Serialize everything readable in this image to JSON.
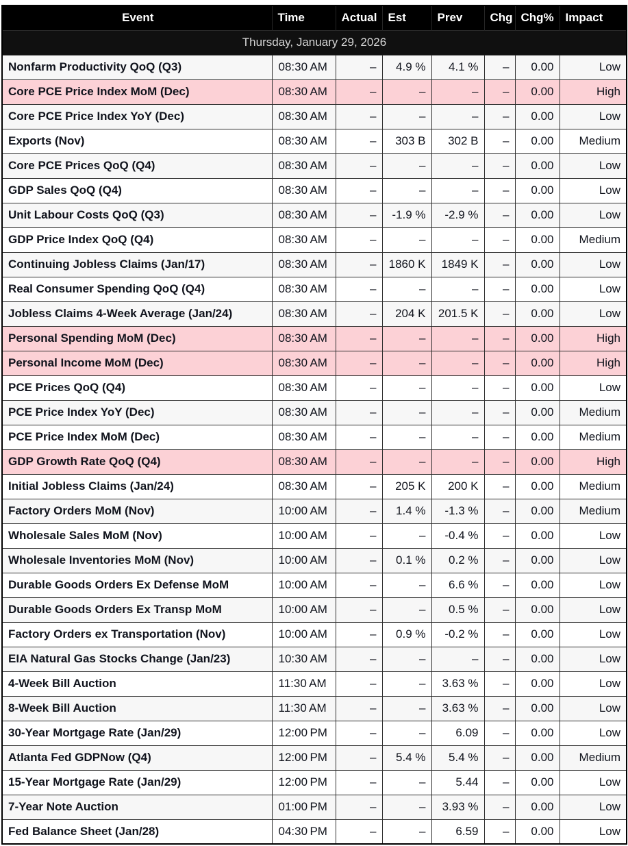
{
  "table": {
    "date_header": "Thursday, January 29, 2026",
    "columns": [
      {
        "key": "event",
        "label": "Event"
      },
      {
        "key": "time",
        "label": "Time"
      },
      {
        "key": "actual",
        "label": "Actual"
      },
      {
        "key": "est",
        "label": "Est"
      },
      {
        "key": "prev",
        "label": "Prev"
      },
      {
        "key": "chg",
        "label": "Chg"
      },
      {
        "key": "chg_pct",
        "label": "Chg%"
      },
      {
        "key": "impact",
        "label": "Impact"
      }
    ],
    "rows": [
      {
        "event": "Nonfarm Productivity QoQ (Q3)",
        "time": "08:30 AM",
        "actual": "–",
        "est": "4.9 %",
        "prev": "4.1 %",
        "chg": "–",
        "chg_pct": "0.00",
        "impact": "Low"
      },
      {
        "event": "Core PCE Price Index MoM (Dec)",
        "time": "08:30 AM",
        "actual": "–",
        "est": "–",
        "prev": "–",
        "chg": "–",
        "chg_pct": "0.00",
        "impact": "High"
      },
      {
        "event": "Core PCE Price Index YoY (Dec)",
        "time": "08:30 AM",
        "actual": "–",
        "est": "–",
        "prev": "–",
        "chg": "–",
        "chg_pct": "0.00",
        "impact": "Low"
      },
      {
        "event": "Exports (Nov)",
        "time": "08:30 AM",
        "actual": "–",
        "est": "303 B",
        "prev": "302 B",
        "chg": "–",
        "chg_pct": "0.00",
        "impact": "Medium"
      },
      {
        "event": "Core PCE Prices QoQ (Q4)",
        "time": "08:30 AM",
        "actual": "–",
        "est": "–",
        "prev": "–",
        "chg": "–",
        "chg_pct": "0.00",
        "impact": "Low"
      },
      {
        "event": "GDP Sales QoQ (Q4)",
        "time": "08:30 AM",
        "actual": "–",
        "est": "–",
        "prev": "–",
        "chg": "–",
        "chg_pct": "0.00",
        "impact": "Low"
      },
      {
        "event": "Unit Labour Costs QoQ (Q3)",
        "time": "08:30 AM",
        "actual": "–",
        "est": "-1.9 %",
        "prev": "-2.9 %",
        "chg": "–",
        "chg_pct": "0.00",
        "impact": "Low"
      },
      {
        "event": "GDP Price Index QoQ (Q4)",
        "time": "08:30 AM",
        "actual": "–",
        "est": "–",
        "prev": "–",
        "chg": "–",
        "chg_pct": "0.00",
        "impact": "Medium"
      },
      {
        "event": "Continuing Jobless Claims (Jan/17)",
        "time": "08:30 AM",
        "actual": "–",
        "est": "1860 K",
        "prev": "1849 K",
        "chg": "–",
        "chg_pct": "0.00",
        "impact": "Low"
      },
      {
        "event": "Real Consumer Spending QoQ (Q4)",
        "time": "08:30 AM",
        "actual": "–",
        "est": "–",
        "prev": "–",
        "chg": "–",
        "chg_pct": "0.00",
        "impact": "Low"
      },
      {
        "event": "Jobless Claims 4-Week Average (Jan/24)",
        "time": "08:30 AM",
        "actual": "–",
        "est": "204 K",
        "prev": "201.5 K",
        "chg": "–",
        "chg_pct": "0.00",
        "impact": "Low"
      },
      {
        "event": "Personal Spending MoM (Dec)",
        "time": "08:30 AM",
        "actual": "–",
        "est": "–",
        "prev": "–",
        "chg": "–",
        "chg_pct": "0.00",
        "impact": "High"
      },
      {
        "event": "Personal Income MoM (Dec)",
        "time": "08:30 AM",
        "actual": "–",
        "est": "–",
        "prev": "–",
        "chg": "–",
        "chg_pct": "0.00",
        "impact": "High"
      },
      {
        "event": "PCE Prices QoQ (Q4)",
        "time": "08:30 AM",
        "actual": "–",
        "est": "–",
        "prev": "–",
        "chg": "–",
        "chg_pct": "0.00",
        "impact": "Low"
      },
      {
        "event": "PCE Price Index YoY (Dec)",
        "time": "08:30 AM",
        "actual": "–",
        "est": "–",
        "prev": "–",
        "chg": "–",
        "chg_pct": "0.00",
        "impact": "Medium"
      },
      {
        "event": "PCE Price Index MoM (Dec)",
        "time": "08:30 AM",
        "actual": "–",
        "est": "–",
        "prev": "–",
        "chg": "–",
        "chg_pct": "0.00",
        "impact": "Medium"
      },
      {
        "event": "GDP Growth Rate QoQ (Q4)",
        "time": "08:30 AM",
        "actual": "–",
        "est": "–",
        "prev": "–",
        "chg": "–",
        "chg_pct": "0.00",
        "impact": "High"
      },
      {
        "event": "Initial Jobless Claims (Jan/24)",
        "time": "08:30 AM",
        "actual": "–",
        "est": "205 K",
        "prev": "200 K",
        "chg": "–",
        "chg_pct": "0.00",
        "impact": "Medium"
      },
      {
        "event": "Factory Orders MoM (Nov)",
        "time": "10:00 AM",
        "actual": "–",
        "est": "1.4 %",
        "prev": "-1.3 %",
        "chg": "–",
        "chg_pct": "0.00",
        "impact": "Medium"
      },
      {
        "event": "Wholesale Sales MoM (Nov)",
        "time": "10:00 AM",
        "actual": "–",
        "est": "–",
        "prev": "-0.4 %",
        "chg": "–",
        "chg_pct": "0.00",
        "impact": "Low"
      },
      {
        "event": "Wholesale Inventories MoM (Nov)",
        "time": "10:00 AM",
        "actual": "–",
        "est": "0.1 %",
        "prev": "0.2 %",
        "chg": "–",
        "chg_pct": "0.00",
        "impact": "Low"
      },
      {
        "event": "Durable Goods Orders Ex Defense MoM",
        "time": "10:00 AM",
        "actual": "–",
        "est": "–",
        "prev": "6.6 %",
        "chg": "–",
        "chg_pct": "0.00",
        "impact": "Low"
      },
      {
        "event": "Durable Goods Orders Ex Transp MoM",
        "time": "10:00 AM",
        "actual": "–",
        "est": "–",
        "prev": "0.5 %",
        "chg": "–",
        "chg_pct": "0.00",
        "impact": "Low"
      },
      {
        "event": "Factory Orders ex Transportation (Nov)",
        "time": "10:00 AM",
        "actual": "–",
        "est": "0.9 %",
        "prev": "-0.2 %",
        "chg": "–",
        "chg_pct": "0.00",
        "impact": "Low"
      },
      {
        "event": "EIA Natural Gas Stocks Change (Jan/23)",
        "time": "10:30 AM",
        "actual": "–",
        "est": "–",
        "prev": "–",
        "chg": "–",
        "chg_pct": "0.00",
        "impact": "Low"
      },
      {
        "event": "4-Week Bill Auction",
        "time": "11:30 AM",
        "actual": "–",
        "est": "–",
        "prev": "3.63 %",
        "chg": "–",
        "chg_pct": "0.00",
        "impact": "Low"
      },
      {
        "event": "8-Week Bill Auction",
        "time": "11:30 AM",
        "actual": "–",
        "est": "–",
        "prev": "3.63 %",
        "chg": "–",
        "chg_pct": "0.00",
        "impact": "Low"
      },
      {
        "event": "30-Year Mortgage Rate (Jan/29)",
        "time": "12:00 PM",
        "actual": "–",
        "est": "–",
        "prev": "6.09",
        "chg": "–",
        "chg_pct": "0.00",
        "impact": "Low"
      },
      {
        "event": "Atlanta Fed GDPNow (Q4)",
        "time": "12:00 PM",
        "actual": "–",
        "est": "5.4 %",
        "prev": "5.4 %",
        "chg": "–",
        "chg_pct": "0.00",
        "impact": "Medium"
      },
      {
        "event": "15-Year Mortgage Rate (Jan/29)",
        "time": "12:00 PM",
        "actual": "–",
        "est": "–",
        "prev": "5.44",
        "chg": "–",
        "chg_pct": "0.00",
        "impact": "Low"
      },
      {
        "event": "7-Year Note Auction",
        "time": "01:00 PM",
        "actual": "–",
        "est": "–",
        "prev": "3.93 %",
        "chg": "–",
        "chg_pct": "0.00",
        "impact": "Low"
      },
      {
        "event": "Fed Balance Sheet (Jan/28)",
        "time": "04:30 PM",
        "actual": "–",
        "est": "–",
        "prev": "6.59",
        "chg": "–",
        "chg_pct": "0.00",
        "impact": "Low"
      }
    ]
  },
  "colors": {
    "header_bg": "#000000",
    "header_text": "#ffffff",
    "date_bg": "#101010",
    "date_text": "#d6d6d6",
    "row_odd_bg": "#f7f7f7",
    "row_even_bg": "#ffffff",
    "high_impact_bg": "#fcd1d6",
    "text": "#10131c",
    "dash": "#5e7b99",
    "border": "#2f2f2f"
  }
}
